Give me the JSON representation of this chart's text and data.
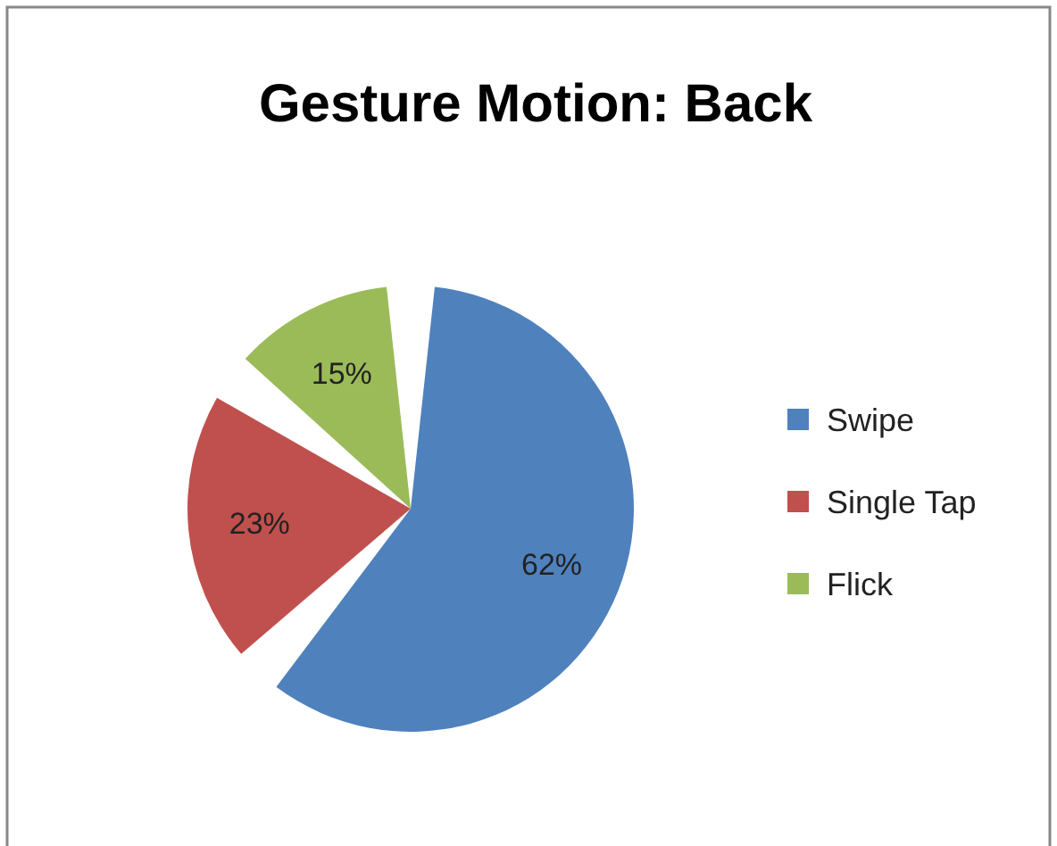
{
  "chart_data": {
    "type": "pie",
    "title": "Gesture Motion: Back",
    "categories": [
      "Swipe",
      "Single Tap",
      "Flick"
    ],
    "values": [
      62,
      23,
      15
    ],
    "colors": [
      "#4f81bd",
      "#c0504d",
      "#9bbb59"
    ],
    "value_labels": [
      "62%",
      "23%",
      "15%"
    ],
    "legend": "right"
  }
}
